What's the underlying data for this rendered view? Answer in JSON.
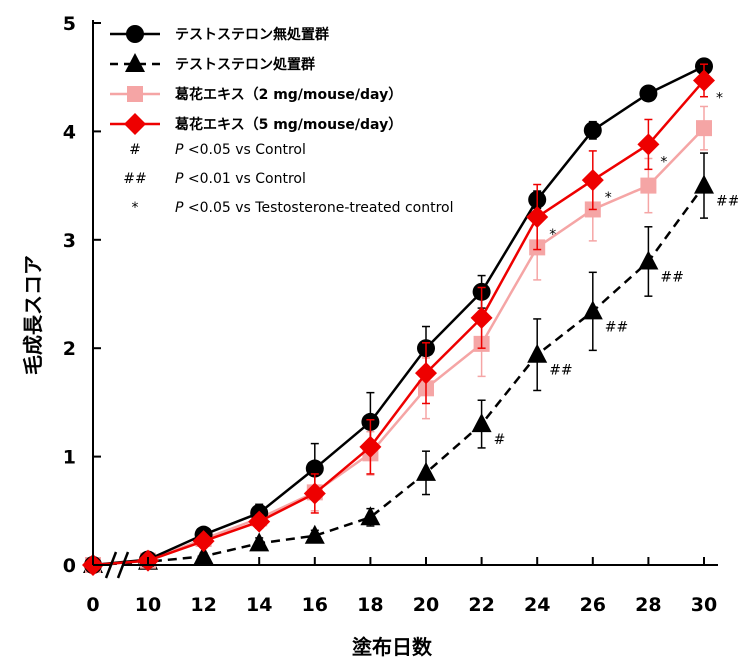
{
  "chart_data": {
    "type": "line",
    "title": "",
    "xlabel": "塗布日数",
    "ylabel": "毛成長スコア",
    "x": [
      0,
      10,
      12,
      14,
      16,
      18,
      20,
      22,
      24,
      26,
      28,
      30
    ],
    "x_ticks": [
      "0",
      "10",
      "12",
      "14",
      "16",
      "18",
      "20",
      "22",
      "24",
      "26",
      "28",
      "30"
    ],
    "y_ticks": [
      "0",
      "1",
      "2",
      "3",
      "4",
      "5"
    ],
    "ylim": [
      0,
      5
    ],
    "axis_break": "between 0 and 10",
    "grid": false,
    "legend_position": "top-left",
    "series": [
      {
        "name": "テストステロン無処置群",
        "color": "#000000",
        "marker": "circle",
        "line": "solid",
        "values": [
          0.0,
          0.05,
          0.28,
          0.48,
          0.89,
          1.32,
          2.0,
          2.52,
          3.37,
          4.01,
          4.35,
          4.6
        ],
        "errors": [
          0.0,
          0.02,
          0.04,
          0.08,
          0.23,
          0.27,
          0.2,
          0.15,
          0.08,
          0.08,
          0.04,
          0.04
        ],
        "annotations": []
      },
      {
        "name": "テストステロン処置群",
        "color": "#000000",
        "marker": "triangle",
        "line": "dashed",
        "values": [
          0.0,
          0.03,
          0.08,
          0.2,
          0.27,
          0.44,
          0.85,
          1.3,
          1.94,
          2.34,
          2.8,
          3.5
        ],
        "errors": [
          0.0,
          0.02,
          0.03,
          0.05,
          0.05,
          0.08,
          0.2,
          0.22,
          0.33,
          0.36,
          0.32,
          0.3
        ],
        "annotations": [
          "",
          "",
          "",
          "",
          "",
          "",
          "",
          "#",
          "##",
          "##",
          "##",
          "##"
        ]
      },
      {
        "name": "葛花エキス（2 mg/mouse/day）",
        "color": "#f5a5a5",
        "marker": "square",
        "line": "solid",
        "values": [
          0.0,
          0.04,
          0.24,
          0.43,
          0.67,
          1.03,
          1.63,
          2.04,
          2.93,
          3.28,
          3.5,
          4.03
        ],
        "errors": [
          0.0,
          0.02,
          0.04,
          0.06,
          0.17,
          0.2,
          0.28,
          0.3,
          0.3,
          0.29,
          0.25,
          0.2
        ],
        "annotations": []
      },
      {
        "name": "葛花エキス（5 mg/mouse/day）",
        "color": "#ee0000",
        "marker": "diamond",
        "line": "solid",
        "values": [
          0.0,
          0.04,
          0.22,
          0.4,
          0.66,
          1.09,
          1.77,
          2.28,
          3.21,
          3.55,
          3.88,
          4.47
        ],
        "errors": [
          0.0,
          0.02,
          0.04,
          0.06,
          0.18,
          0.25,
          0.28,
          0.28,
          0.3,
          0.27,
          0.23,
          0.15
        ],
        "annotations": [
          "",
          "",
          "",
          "",
          "",
          "",
          "",
          "",
          "*",
          "*",
          "*",
          "*"
        ]
      }
    ],
    "significance_legend": [
      {
        "symbol": "#",
        "p": "P",
        "text": "<0.05 vs Control"
      },
      {
        "symbol": "##",
        "p": "P",
        "text": "<0.01 vs Control"
      },
      {
        "symbol": "*",
        "p": "P",
        "text": "<0.05 vs Testosterone-treated control"
      }
    ]
  }
}
